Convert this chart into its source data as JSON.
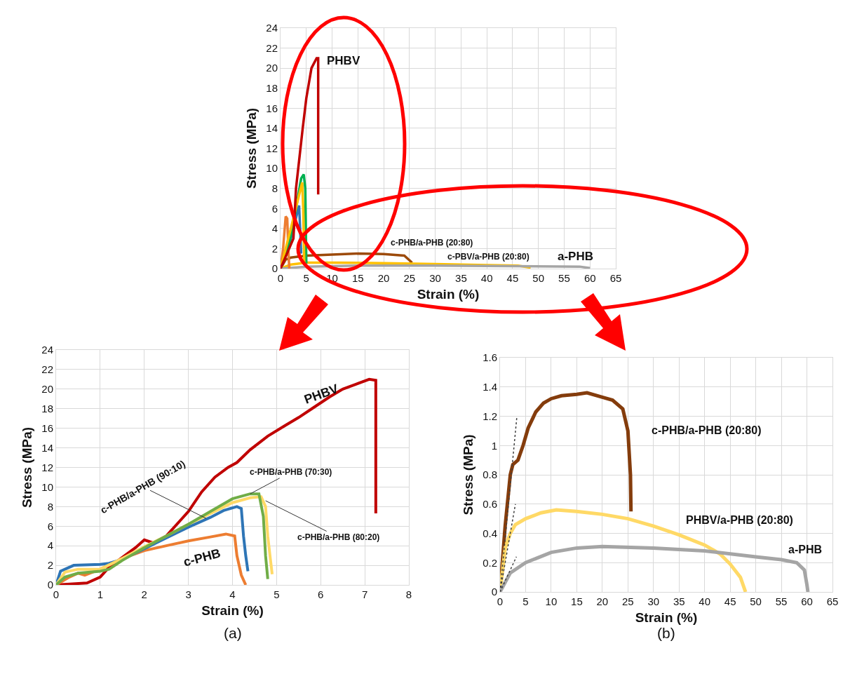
{
  "chart_data": [
    {
      "type": "line",
      "xlabel": "Strain (%)",
      "ylabel": "Stress (MPa)",
      "xlim": [
        0,
        65
      ],
      "xticks": [
        0,
        5,
        10,
        15,
        20,
        25,
        30,
        35,
        40,
        45,
        50,
        55,
        60,
        65
      ],
      "ylim": [
        0,
        24
      ],
      "yticks": [
        0,
        2,
        4,
        6,
        8,
        10,
        12,
        14,
        16,
        18,
        20,
        22,
        24
      ],
      "grid": true,
      "series": [
        {
          "color": "#9c4a0a",
          "x": [
            0,
            1,
            2,
            5,
            10,
            15,
            20,
            24,
            25.5
          ],
          "values": [
            0,
            0.9,
            1.1,
            1.3,
            1.4,
            1.5,
            1.45,
            1.3,
            0.6
          ]
        },
        {
          "color": "#ffc000",
          "x": [
            0,
            2,
            5,
            10,
            20,
            30,
            40,
            46,
            48.5
          ],
          "values": [
            0,
            0.4,
            0.6,
            0.6,
            0.55,
            0.45,
            0.35,
            0.3,
            0.1
          ]
        },
        {
          "color": "#a5a5a5",
          "x": [
            0,
            5,
            15,
            30,
            45,
            58,
            60
          ],
          "values": [
            0,
            0.2,
            0.3,
            0.3,
            0.25,
            0.2,
            0.05
          ]
        },
        {
          "color": "#ed7d31",
          "x": [
            0,
            0.5,
            1,
            1.3,
            1.5,
            1.7
          ],
          "values": [
            0,
            2,
            5.2,
            5,
            2,
            0
          ]
        },
        {
          "color": "#2e75b6",
          "x": [
            0,
            2,
            3.6,
            3.8,
            4
          ],
          "values": [
            0,
            3,
            6.3,
            4,
            1.5
          ]
        },
        {
          "color": "#00b050",
          "x": [
            0,
            1.5,
            3,
            4,
            4.5,
            4.8,
            5
          ],
          "values": [
            0,
            2,
            6,
            9,
            9.4,
            8,
            0.5
          ]
        },
        {
          "color": "#ffc000",
          "x": [
            0,
            2,
            4.2,
            4.4,
            4.6
          ],
          "values": [
            0,
            4,
            8.6,
            6,
            0.5
          ]
        },
        {
          "color": "#c00000",
          "x": [
            0,
            2.5,
            3,
            4.3,
            5,
            6,
            7,
            7.3,
            7.3
          ],
          "values": [
            0,
            3,
            8,
            14,
            17,
            20,
            21,
            21,
            7.4
          ]
        }
      ],
      "annotations": [
        "PHBV",
        "c-PHB/a-PHB (20:80)",
        "c-PBV/a-PHB (20:80)",
        "a-PHB"
      ]
    },
    {
      "type": "line",
      "xlabel": "Strain (%)",
      "ylabel": "Stress (MPa)",
      "xlim": [
        0,
        8
      ],
      "xticks": [
        0,
        1,
        2,
        3,
        4,
        5,
        6,
        7,
        8
      ],
      "ylim": [
        0,
        24
      ],
      "yticks": [
        0,
        2,
        4,
        6,
        8,
        10,
        12,
        14,
        16,
        18,
        20,
        22,
        24
      ],
      "grid": true,
      "series": [
        {
          "color": "#c00000",
          "x": [
            0,
            0.7,
            1,
            1.2,
            1.5,
            1.8,
            2,
            2.2,
            2.5,
            2.8,
            3,
            3.3,
            3.6,
            3.9,
            4.1,
            4.4,
            4.8,
            5.2,
            5.5,
            5.8,
            6.2,
            6.5,
            6.8,
            7.1,
            7.25,
            7.25
          ],
          "values": [
            0,
            0.2,
            0.8,
            1.8,
            2.8,
            3.8,
            4.6,
            4.3,
            5,
            6.5,
            7.5,
            9.5,
            11,
            12,
            12.5,
            13.8,
            15.2,
            16.3,
            17.1,
            18,
            19.2,
            20,
            20.5,
            21,
            20.9,
            7.3
          ]
        },
        {
          "color": "#ed7d31",
          "x": [
            0,
            0.3,
            0.5,
            0.65,
            1,
            1.5,
            2,
            2.5,
            3,
            3.5,
            3.85,
            4.05,
            4.1,
            4.2,
            4.3
          ],
          "values": [
            0,
            0.8,
            1.2,
            1,
            1.6,
            2.7,
            3.5,
            4,
            4.5,
            4.9,
            5.2,
            5,
            3,
            1,
            0
          ]
        },
        {
          "color": "#2e75b6",
          "x": [
            0,
            0.1,
            0.4,
            1,
            1.2,
            1.5,
            2,
            2.5,
            3,
            3.5,
            3.8,
            4.1,
            4.2,
            4.25,
            4.3,
            4.35
          ],
          "values": [
            0,
            1.4,
            2,
            2.1,
            2.2,
            2.6,
            3.7,
            4.8,
            5.9,
            6.9,
            7.6,
            8,
            7.8,
            5,
            3,
            1.4
          ]
        },
        {
          "color": "#ffd966",
          "x": [
            0,
            0.2,
            0.5,
            1,
            1.5,
            2,
            2.5,
            3,
            3.5,
            4,
            4.4,
            4.65,
            4.75,
            4.8,
            4.85,
            4.9
          ],
          "values": [
            0,
            1.3,
            1.6,
            1.6,
            2.7,
            3.9,
            5,
            6.2,
            7.3,
            8.4,
            8.9,
            9,
            8,
            5,
            3,
            1.1
          ]
        },
        {
          "color": "#70ad47",
          "x": [
            0,
            0.2,
            0.5,
            1,
            1.2,
            1.5,
            2,
            2.5,
            3,
            3.5,
            4,
            4.4,
            4.6,
            4.7,
            4.75,
            4.8
          ],
          "values": [
            0,
            0.8,
            1.2,
            1.4,
            1.6,
            2.5,
            3.8,
            5,
            6.2,
            7.5,
            8.8,
            9.3,
            9.3,
            7,
            3,
            0.6
          ]
        }
      ],
      "annotations": [
        "PHBV",
        "c-PHB",
        {
          "text": "c-PHB/a-PHB (90:10)",
          "x": 3.4,
          "y": 6.8
        },
        {
          "text": "c-PHB/a-PHB (70:30)",
          "x": 4.4,
          "y": 9.3
        },
        {
          "text": "c-PHB/a-PHB (80:20)",
          "x": 4.75,
          "y": 8.6
        },
        "(a)"
      ]
    },
    {
      "type": "line",
      "xlabel": "Strain (%)",
      "ylabel": "Stress (MPa)",
      "xlim": [
        0,
        65
      ],
      "xticks": [
        0,
        5,
        10,
        15,
        20,
        25,
        30,
        35,
        40,
        45,
        50,
        55,
        60,
        65
      ],
      "ylim": [
        0,
        1.6
      ],
      "yticks": [
        0,
        0.2,
        0.4,
        0.6,
        0.8,
        1,
        1.2,
        1.4,
        1.6
      ],
      "grid": true,
      "series": [
        {
          "color": "#843c0c",
          "x": [
            0,
            1,
            2,
            2.5,
            3.5,
            4.5,
            5.5,
            7,
            8.5,
            10,
            12,
            15,
            17,
            20,
            22,
            24,
            25,
            25.5,
            25.6
          ],
          "values": [
            0,
            0.45,
            0.8,
            0.87,
            0.9,
            1,
            1.12,
            1.23,
            1.29,
            1.32,
            1.34,
            1.35,
            1.36,
            1.33,
            1.31,
            1.25,
            1.1,
            0.8,
            0.55
          ]
        },
        {
          "color": "#ffd966",
          "x": [
            0,
            1,
            2,
            3,
            5,
            8,
            11,
            15,
            20,
            25,
            30,
            35,
            40,
            43,
            45,
            47,
            48
          ],
          "values": [
            0,
            0.3,
            0.4,
            0.46,
            0.5,
            0.54,
            0.56,
            0.55,
            0.53,
            0.5,
            0.45,
            0.39,
            0.32,
            0.26,
            0.19,
            0.1,
            0
          ]
        },
        {
          "color": "#a5a5a5",
          "x": [
            0,
            2,
            5,
            10,
            15,
            20,
            30,
            40,
            50,
            55,
            58,
            59.5,
            60,
            60.2
          ],
          "values": [
            0,
            0.13,
            0.2,
            0.27,
            0.3,
            0.31,
            0.3,
            0.28,
            0.24,
            0.22,
            0.2,
            0.15,
            0.05,
            0
          ]
        },
        {
          "color": "#404040",
          "line_style": "dotted",
          "x": [
            0,
            3.3
          ],
          "values": [
            0,
            1.2
          ]
        },
        {
          "color": "#404040",
          "line_style": "dotted",
          "x": [
            0,
            3
          ],
          "values": [
            0,
            0.6
          ]
        },
        {
          "color": "#404040",
          "line_style": "dotted",
          "x": [
            0,
            3.2
          ],
          "values": [
            0,
            0.24
          ]
        }
      ],
      "annotations": [
        "c-PHB/a-PHB (20:80)",
        "PHBV/a-PHB (20:80)",
        "a-PHB",
        "(b)"
      ]
    }
  ]
}
